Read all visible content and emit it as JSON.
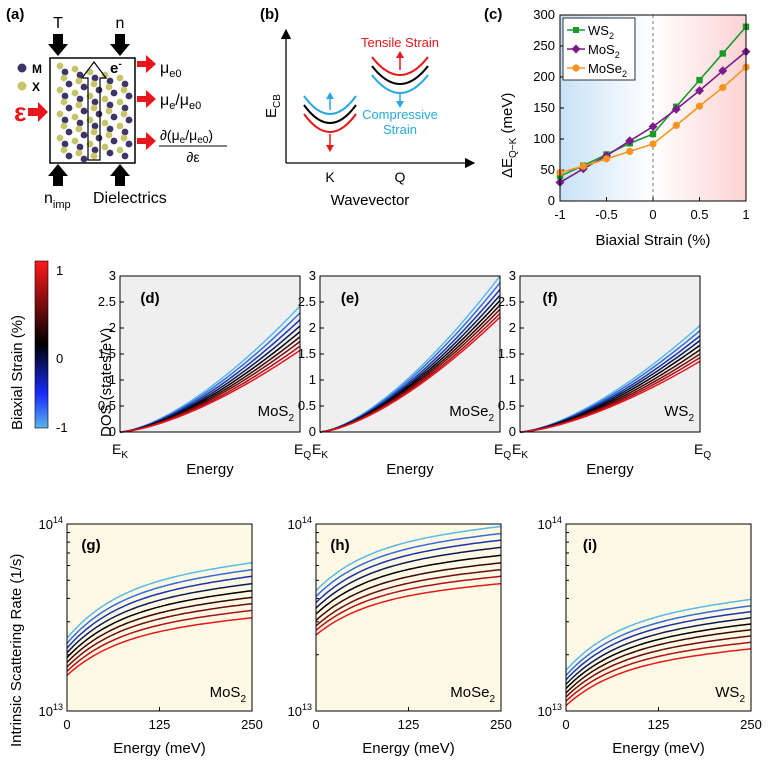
{
  "panel_labels": {
    "a": "(a)",
    "b": "(b)",
    "c": "(c)",
    "d": "(d)",
    "e": "(e)",
    "f": "(f)",
    "g": "(g)",
    "h": "(h)",
    "i": "(i)"
  },
  "panel_a": {
    "top_labels": [
      "T",
      "n"
    ],
    "legend_m": "M",
    "legend_x": "X",
    "epsilon": "ε",
    "electron": "e",
    "electron_sup": "-",
    "outputs": {
      "mu_e0": {
        "main": "μ",
        "sub": "e0"
      },
      "ratio": {
        "mu1": "μ",
        "sub1": "e",
        "slash": "/μ",
        "sub2": "e0"
      },
      "derivative": {
        "num_a": "∂(μ",
        "num_sub1": "e",
        "num_b": "/μ",
        "num_sub2": "e0",
        "num_c": ")",
        "den": "∂ε"
      }
    },
    "bottom_labels": {
      "nimp_main": "n",
      "nimp_sub": "imp",
      "dielectrics": "Dielectrics"
    },
    "colors": {
      "m_atom": "#3d3566",
      "x_atom": "#c9c46a",
      "arrow": "#e8161b"
    }
  },
  "panel_b": {
    "ylabel_main": "E",
    "ylabel_sub": "CB",
    "xlabel": "Wavevector",
    "valley_k": "K",
    "valley_q": "Q",
    "tensile": "Tensile Strain",
    "compressive_line1": "Compressive",
    "compressive_line2": "Strain",
    "colors": {
      "tensile": "#e8161b",
      "compressive": "#28a8e0",
      "neutral": "#000000"
    }
  },
  "colorbar": {
    "label": "Biaxial Strain (%)",
    "ticks": [
      "1",
      "0",
      "-1"
    ],
    "stops": [
      "#ff1a1a",
      "#000000",
      "#1a2cff",
      "#5ab4ea"
    ]
  },
  "chart_data": [
    {
      "id": "c",
      "type": "line",
      "title": "",
      "xlabel": "Biaxial Strain (%)",
      "ylabel_main": "ΔE",
      "ylabel_sub": "Q−K",
      "ylabel_unit": " (meV)",
      "xlim": [
        -1,
        1
      ],
      "ylim": [
        0,
        300
      ],
      "xticks": [
        "-1",
        "-0.5",
        "0",
        "0.5",
        "1"
      ],
      "yticks": [
        "0",
        "50",
        "100",
        "150",
        "200",
        "250",
        "300"
      ],
      "x": [
        -1,
        -0.75,
        -0.5,
        -0.25,
        0,
        0.25,
        0.5,
        0.75,
        1
      ],
      "legend_position": "top-left",
      "series": [
        {
          "name_main": "WS",
          "name_sub": "2",
          "marker": "square",
          "color": "#1a9a2a",
          "values": [
            40,
            57,
            75,
            93,
            108,
            152,
            195,
            238,
            281
          ]
        },
        {
          "name_main": "MoS",
          "name_sub": "2",
          "marker": "diamond",
          "color": "#7b1a8a",
          "values": [
            30,
            52,
            73,
            97,
            120,
            148,
            178,
            210,
            241
          ]
        },
        {
          "name_main": "MoSe",
          "name_sub": "2",
          "marker": "circle",
          "color": "#f7931e",
          "values": [
            46,
            56,
            68,
            80,
            92,
            122,
            153,
            183,
            216
          ]
        }
      ]
    },
    {
      "id": "dos",
      "type": "line",
      "ylabel": "DOS (states/eV)",
      "xlabel": "Energy",
      "xtick_start_main": "E",
      "xtick_start_sub": "K",
      "xtick_end_main": "E",
      "xtick_end_sub": "Q",
      "ylim": [
        0,
        3
      ],
      "yticks": [
        "0",
        "0.5",
        "1",
        "1.5",
        "2",
        "2.5",
        "3"
      ],
      "strain_levels": [
        -1,
        -0.75,
        -0.5,
        -0.25,
        0,
        0.25,
        0.5,
        0.75,
        1
      ],
      "panels": [
        {
          "label": "(d)",
          "material_main": "MoS",
          "material_sub": "2",
          "end_values": [
            2.42,
            2.29,
            2.16,
            2.04,
            1.93,
            1.83,
            1.74,
            1.65,
            1.57
          ]
        },
        {
          "label": "(e)",
          "material_main": "MoSe",
          "material_sub": "2",
          "end_values": [
            3.0,
            2.87,
            2.74,
            2.63,
            2.53,
            2.44,
            2.36,
            2.28,
            2.21
          ]
        },
        {
          "label": "(f)",
          "material_main": "WS",
          "material_sub": "2",
          "end_values": [
            2.05,
            1.95,
            1.85,
            1.76,
            1.67,
            1.58,
            1.5,
            1.43,
            1.36
          ]
        }
      ]
    },
    {
      "id": "scattering",
      "type": "line",
      "ylabel": "Intrinsic Scattering Rate (1/s)",
      "xlabel": "Energy (meV)",
      "xlim": [
        0,
        250
      ],
      "xticks": [
        "0",
        "125",
        "250"
      ],
      "yscale": "log",
      "ylim": [
        10000000000000.0,
        100000000000000.0
      ],
      "ytick_base": "10",
      "ytick_exps": [
        "13",
        "14"
      ],
      "strain_levels": [
        -1,
        -0.75,
        -0.5,
        -0.25,
        0,
        0.25,
        0.5,
        0.75,
        1
      ],
      "panels": [
        {
          "label": "(g)",
          "material_main": "MoS",
          "material_sub": "2",
          "start_values": [
            24500000000000.0,
            23000000000000.0,
            21700000000000.0,
            20500000000000.0,
            19300000000000.0,
            18200000000000.0,
            17200000000000.0,
            16300000000000.0,
            15500000000000.0
          ],
          "end_values": [
            62000000000000.0,
            57000000000000.0,
            52500000000000.0,
            48000000000000.0,
            44000000000000.0,
            40500000000000.0,
            37500000000000.0,
            34500000000000.0,
            31500000000000.0
          ]
        },
        {
          "label": "(h)",
          "material_main": "MoSe",
          "material_sub": "2",
          "start_values": [
            44000000000000.0,
            41000000000000.0,
            38000000000000.0,
            35500000000000.0,
            33000000000000.0,
            30500000000000.0,
            28500000000000.0,
            27000000000000.0,
            25500000000000.0
          ],
          "end_values": [
            97000000000000.0,
            89000000000000.0,
            82000000000000.0,
            75000000000000.0,
            68000000000000.0,
            62000000000000.0,
            57000000000000.0,
            52500000000000.0,
            48000000000000.0
          ]
        },
        {
          "label": "(i)",
          "material_main": "WS",
          "material_sub": "2",
          "start_values": [
            16500000000000.0,
            15500000000000.0,
            14700000000000.0,
            13900000000000.0,
            13200000000000.0,
            12500000000000.0,
            11900000000000.0,
            11300000000000.0,
            10700000000000.0
          ],
          "end_values": [
            39500000000000.0,
            36500000000000.0,
            34000000000000.0,
            31500000000000.0,
            29200000000000.0,
            27200000000000.0,
            25200000000000.0,
            23300000000000.0,
            21500000000000.0
          ]
        }
      ]
    }
  ]
}
